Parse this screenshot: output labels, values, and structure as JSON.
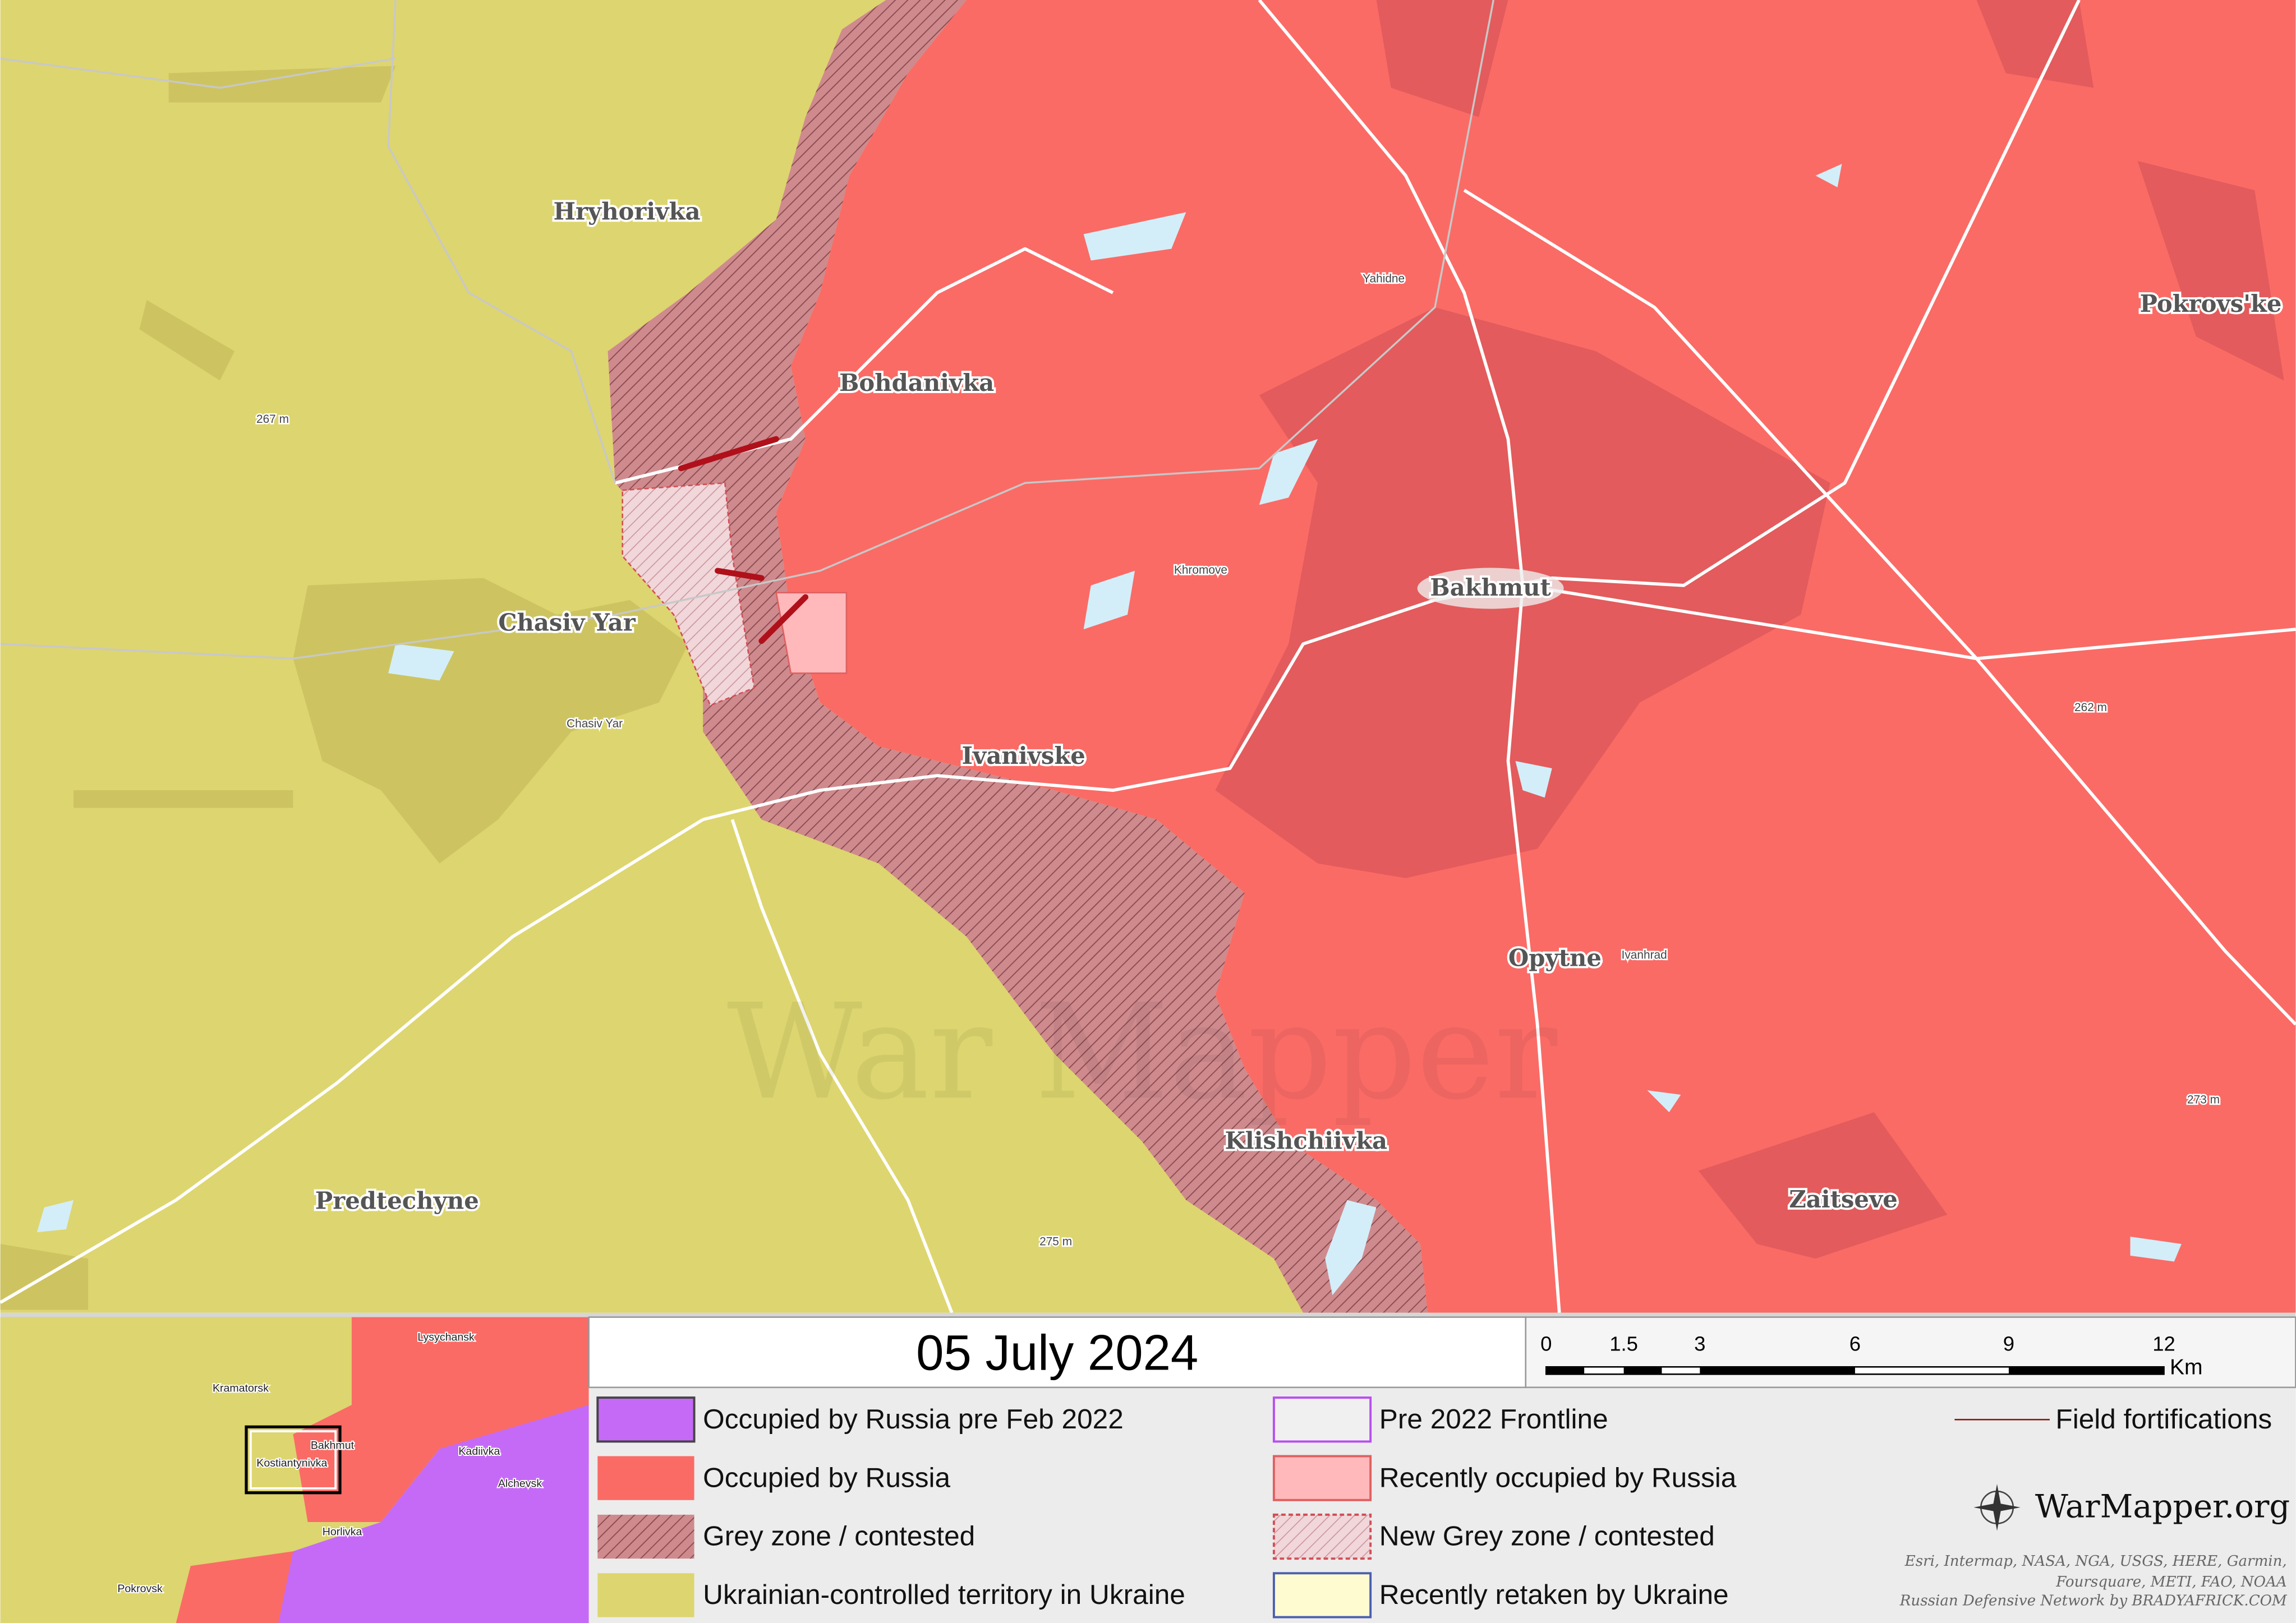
{
  "map": {
    "places": [
      "Hryhorivka",
      "Bohdanivka",
      "Chasiv Yar",
      "Ivanivske",
      "Bakhmut",
      "Pokrovs'ke",
      "Opytne",
      "Klishchiivka",
      "Predtechyne",
      "Zaitseve"
    ],
    "minor_places": [
      "Chasiv Yar",
      "Khromove",
      "Yahidne",
      "Ivanhrad"
    ],
    "elevations": [
      "267 m",
      "262 m",
      "273 m",
      "275 m"
    ],
    "watermark": "War Mapper"
  },
  "inset": {
    "labels": [
      "Lysychansk",
      "Kramatorsk",
      "Bakhmut",
      "Kostiantynivka",
      "Kadiivka",
      "Horlivka",
      "Alchevsk",
      "Pokrovsk"
    ]
  },
  "date": "05 July 2024",
  "scale": {
    "ticks": [
      "0",
      "1.5",
      "3",
      "6",
      "9",
      "12"
    ],
    "unit": "Km"
  },
  "legend": {
    "items": [
      "Occupied by Russia pre Feb 2022",
      "Occupied by Russia",
      "Grey zone / contested",
      "Ukrainian-controlled territory in Ukraine",
      "Pre 2022 Frontline",
      "Recently occupied by Russia",
      "New Grey zone / contested",
      "Recently retaken by Ukraine",
      "Field fortifications"
    ]
  },
  "brand": "WarMapper.org",
  "credits": [
    "Esri, Intermap, NASA, NGA, USGS, HERE, Garmin,",
    "Foursquare, METI, FAO, NOAA",
    "Russian Defensive Network by BRADYAFRICK.COM"
  ]
}
